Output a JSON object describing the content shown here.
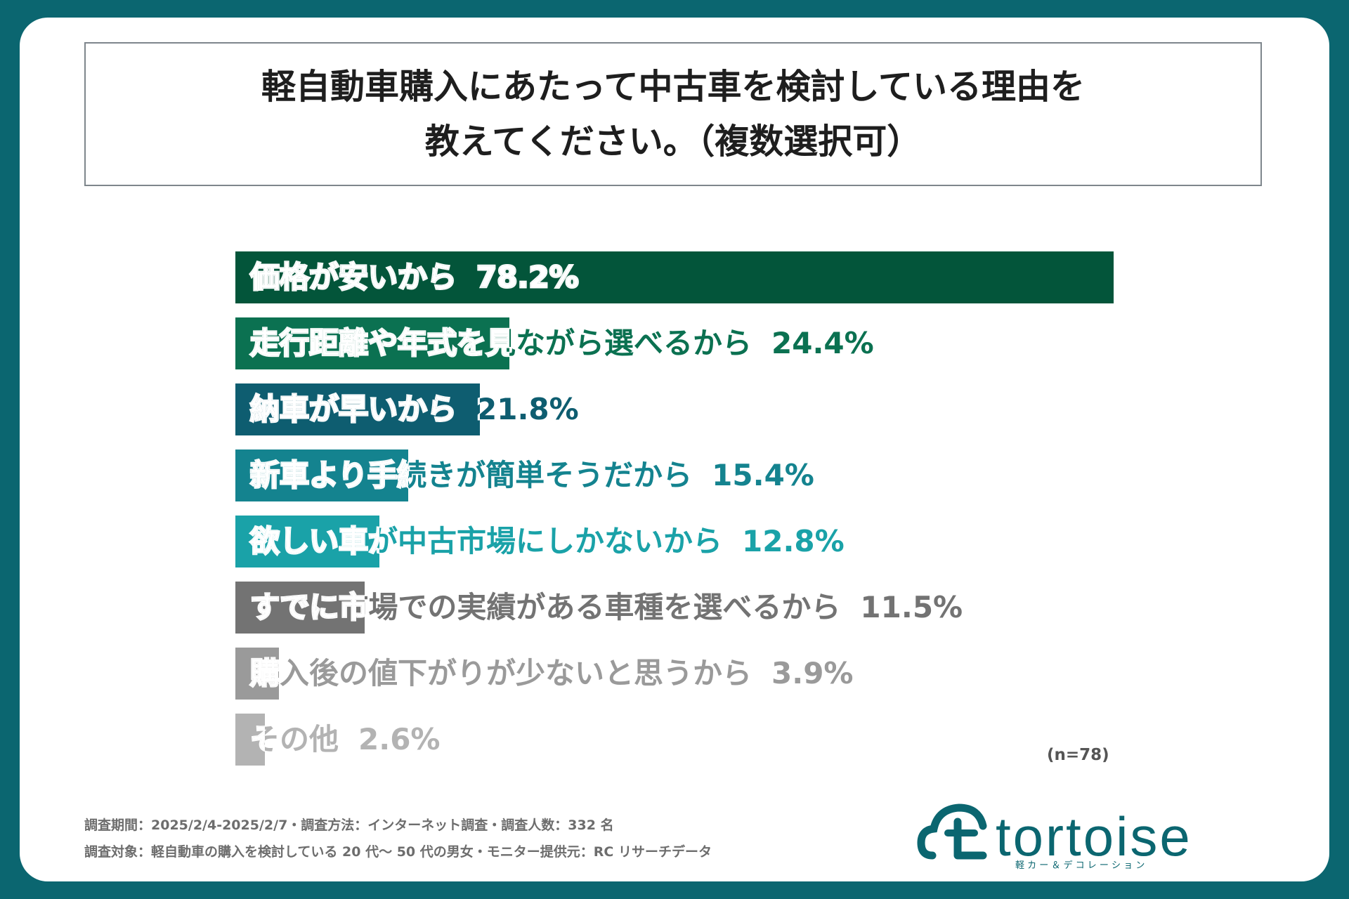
{
  "title": {
    "line1": "軽自動車購入にあたって中古車を検討している理由を",
    "line2": "教えてください。（複数選択可）"
  },
  "chart_data": {
    "type": "bar",
    "orientation": "horizontal",
    "title": "軽自動車購入にあたって中古車を検討している理由を教えてください。（複数選択可）",
    "categories": [
      "価格が安いから",
      "走行距離や年式を見ながら選べるから",
      "納車が早いから",
      "新車より手続きが簡単そうだから",
      "欲しい車が中古市場にしかないから",
      "すでに市場での実績がある車種を選べるから",
      "購入後の値下がりが少ないと思うから",
      "その他"
    ],
    "values": [
      78.2,
      24.4,
      21.8,
      15.4,
      12.8,
      11.5,
      3.9,
      2.6
    ],
    "value_labels": [
      "78.2%",
      "24.4%",
      "21.8%",
      "15.4%",
      "12.8%",
      "11.5%",
      "3.9%",
      "2.6%"
    ],
    "colors": [
      "#03553a",
      "#0b7151",
      "#0e5d70",
      "#14838f",
      "#1aa2a8",
      "#737373",
      "#9a9a9a",
      "#b3b3b3"
    ],
    "xlim": [
      0,
      78.2
    ],
    "grid": false,
    "legend": "none"
  },
  "note": "(n=78)",
  "footer": {
    "line1": "調査期間：2025/2/4-2025/2/7・調査方法：インターネット調査・調査人数：332 名",
    "line2": "調査対象：軽自動車の購入を検討している 20 代〜 50 代の男女・モニター提供元：RC リサーチデータ"
  },
  "logo": {
    "text": "tortoise",
    "sub": "軽 カ ー ＆ デ コ レ ー シ ョ ン",
    "color": "#0b6670"
  }
}
